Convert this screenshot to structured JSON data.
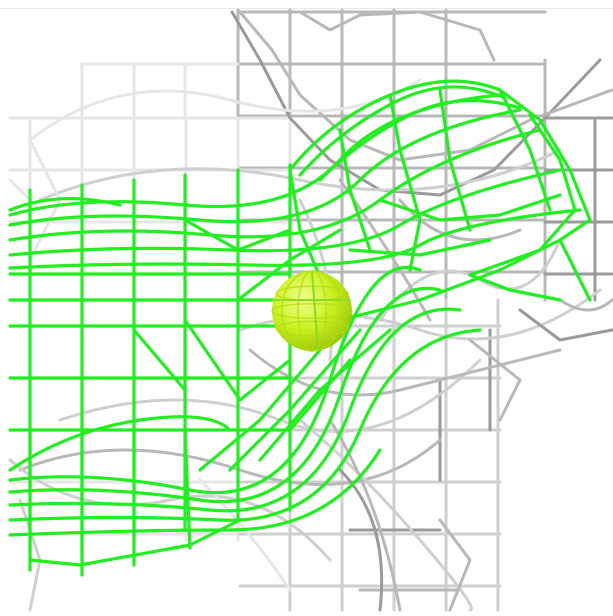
{
  "viewer": {
    "background": "#ffffff",
    "mesh_gray_colors": [
      "#e6e6e6",
      "#cfcfcf",
      "#b8b8b8",
      "#9a9a9a",
      "#7d7d7d"
    ],
    "mesh_green_color": "#22ee22",
    "sphere": {
      "fill_light": "#f4ff90",
      "fill_mid": "#c8f020",
      "fill_dark": "#9cc40c",
      "grid_color": "#b4dc10"
    }
  }
}
